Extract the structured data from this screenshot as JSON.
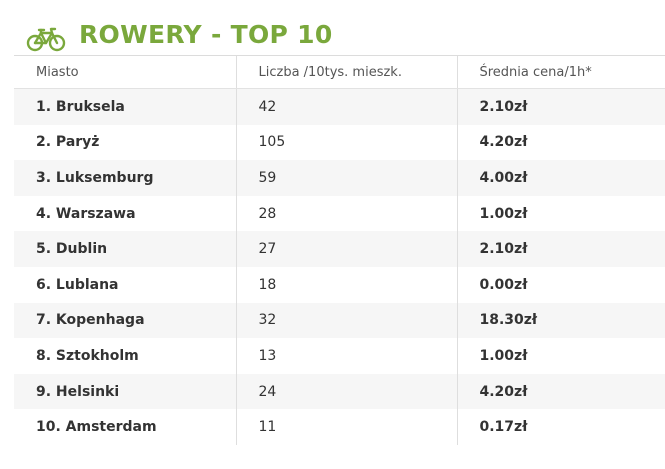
{
  "title": "ROWERY - TOP 10",
  "icon": "bicycle-icon",
  "accent_color": "#7aa83c",
  "table": {
    "columns": [
      "Miasto",
      "Liczba /10tys. mieszk.",
      "Średnia cena/1h*"
    ],
    "rows": [
      {
        "city": "1. Bruksela",
        "count": "42",
        "price": "2.10zł"
      },
      {
        "city": "2. Paryż",
        "count": "105",
        "price": "4.20zł"
      },
      {
        "city": "3. Luksemburg",
        "count": "59",
        "price": "4.00zł"
      },
      {
        "city": "4. Warszawa",
        "count": "28",
        "price": "1.00zł"
      },
      {
        "city": "5. Dublin",
        "count": "27",
        "price": "2.10zł"
      },
      {
        "city": "6. Lublana",
        "count": "18",
        "price": "0.00zł"
      },
      {
        "city": "7. Kopenhaga",
        "count": "32",
        "price": "18.30zł"
      },
      {
        "city": "8. Sztokholm",
        "count": "13",
        "price": "1.00zł"
      },
      {
        "city": "9. Helsinki",
        "count": "24",
        "price": "4.20zł"
      },
      {
        "city": "10. Amsterdam",
        "count": "11",
        "price": "0.17zł"
      }
    ]
  }
}
